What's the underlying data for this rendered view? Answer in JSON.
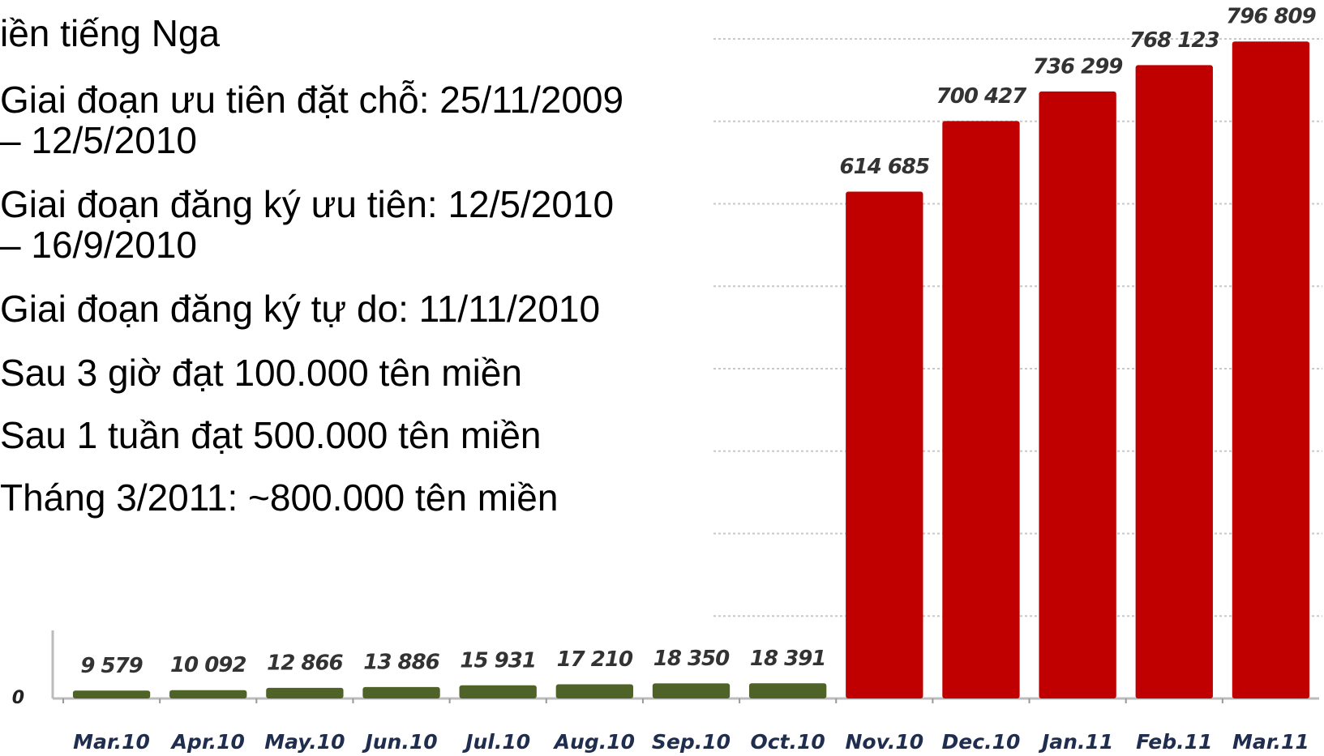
{
  "text": {
    "heading": "iền tiếng Nga",
    "lines": [
      "Giai đoạn ưu tiên đặt chỗ: 25/11/2009",
      "– 12/5/2010",
      "Giai đoạn đăng ký ưu tiên: 12/5/2010",
      "– 16/9/2010",
      "Giai đoạn đăng ký tự do:  11/11/2010",
      "Sau 3 giờ đạt 100.000 tên miền",
      "Sau 1 tuần đạt 500.000 tên miền",
      "Tháng 3/2011: ~800.000 tên miền"
    ]
  },
  "chart_data": {
    "type": "bar",
    "categories": [
      "Mar.10",
      "Apr.10",
      "May.10",
      "Jun.10",
      "Jul.10",
      "Aug.10",
      "Sep.10",
      "Oct.10",
      "Nov.10",
      "Dec.10",
      "Jan.11",
      "Feb.11",
      "Mar.11"
    ],
    "values": [
      9579,
      10092,
      12866,
      13886,
      15931,
      17210,
      18350,
      18391,
      614685,
      700427,
      736299,
      768123,
      796809
    ],
    "value_labels": [
      "9 579",
      "10 092",
      "12 866",
      "13 886",
      "15 931",
      "17 210",
      "18 350",
      "18 391",
      "614 685",
      "700 427",
      "736 299",
      "768 123",
      "796 809"
    ],
    "colors": [
      "#4f6228",
      "#4f6228",
      "#4f6228",
      "#4f6228",
      "#4f6228",
      "#4f6228",
      "#4f6228",
      "#4f6228",
      "#c00000",
      "#c00000",
      "#c00000",
      "#c00000",
      "#c00000"
    ],
    "ylim": [
      0,
      800000
    ],
    "yticks": [
      0
    ],
    "grid": true,
    "gridlines": [
      100000,
      200000,
      300000,
      400000,
      500000,
      600000,
      700000,
      800000
    ]
  }
}
